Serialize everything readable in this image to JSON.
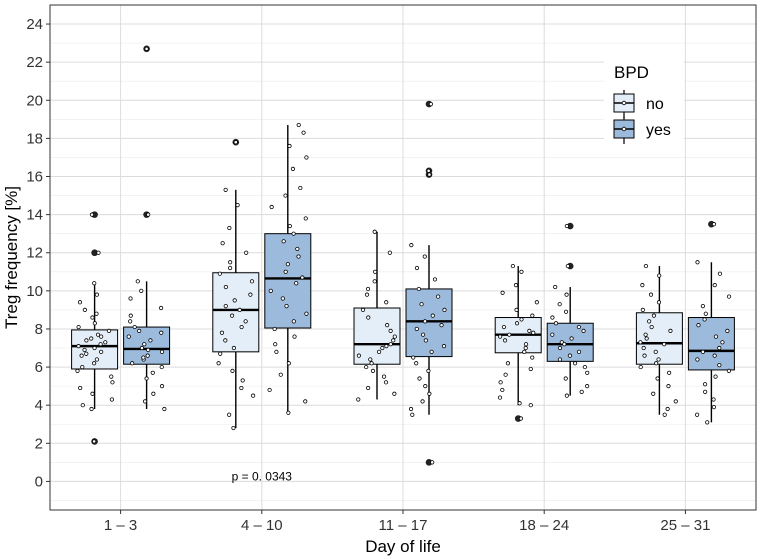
{
  "chart_data": {
    "type": "boxplot",
    "title": "",
    "xlabel": "Day of life",
    "ylabel": "Treg frequency [%]",
    "ylim": [
      -1.5,
      25
    ],
    "yticks": [
      0,
      2,
      4,
      6,
      8,
      10,
      12,
      14,
      16,
      18,
      20,
      22,
      24
    ],
    "categories": [
      "1 – 3",
      "4 – 10",
      "11 – 17",
      "18 – 24",
      "25 – 31"
    ],
    "legend": {
      "title": "BPD",
      "position": "top-right",
      "entries": [
        "no",
        "yes"
      ]
    },
    "colors": {
      "no": "#e3eef8",
      "yes": "#9cbadb"
    },
    "annotation": {
      "text": "p = 0. 0343",
      "category": "4 – 10",
      "y": 0.25
    },
    "series": [
      {
        "name": "no",
        "boxes": [
          {
            "category": "1 – 3",
            "min": 3.8,
            "q1": 5.9,
            "median": 7.1,
            "q3": 7.95,
            "max": 10.4,
            "outliers": [
              14.0,
              12.0,
              2.1
            ],
            "points": [
              10.4,
              9.8,
              9.4,
              9.0,
              8.6,
              8.3,
              8.1,
              7.9,
              7.7,
              7.5,
              7.4,
              7.3,
              7.2,
              7.1,
              7.0,
              6.9,
              6.8,
              6.6,
              6.4,
              6.2,
              6.0,
              5.8,
              5.5,
              5.2,
              4.9,
              4.6,
              4.3,
              4.0,
              3.8,
              8.8,
              7.6,
              6.7
            ]
          },
          {
            "category": "4 – 10",
            "min": 2.8,
            "q1": 6.8,
            "median": 9.0,
            "q3": 10.95,
            "max": 15.3,
            "outliers": [
              17.8
            ],
            "points": [
              15.3,
              14.5,
              13.3,
              12.5,
              12.0,
              11.5,
              11.2,
              10.9,
              10.5,
              10.2,
              9.8,
              9.5,
              9.2,
              9.0,
              8.7,
              8.4,
              8.1,
              7.8,
              7.4,
              7.0,
              6.7,
              6.2,
              5.8,
              5.3,
              4.9,
              4.5,
              3.5,
              2.8
            ]
          },
          {
            "category": "11 – 17",
            "min": 4.3,
            "q1": 6.15,
            "median": 7.2,
            "q3": 9.1,
            "max": 13.1,
            "outliers": [],
            "points": [
              13.1,
              12.0,
              11.0,
              10.5,
              10.1,
              9.8,
              9.4,
              9.0,
              8.6,
              8.2,
              7.9,
              7.6,
              7.4,
              7.2,
              7.1,
              7.0,
              6.8,
              6.6,
              6.4,
              6.2,
              6.0,
              5.8,
              5.5,
              5.2,
              4.9,
              4.6,
              4.3
            ]
          },
          {
            "category": "18 – 24",
            "min": 4.0,
            "q1": 6.75,
            "median": 7.7,
            "q3": 8.6,
            "max": 11.3,
            "outliers": [
              3.3
            ],
            "points": [
              11.3,
              11.0,
              10.3,
              9.9,
              9.4,
              9.0,
              8.7,
              8.5,
              8.3,
              8.1,
              7.9,
              7.8,
              7.7,
              7.6,
              7.4,
              7.2,
              7.0,
              6.8,
              6.5,
              6.2,
              5.9,
              5.6,
              5.2,
              4.8,
              4.4,
              4.1,
              4.0
            ]
          },
          {
            "category": "25 – 31",
            "min": 3.5,
            "q1": 6.15,
            "median": 7.25,
            "q3": 8.85,
            "max": 11.3,
            "outliers": [],
            "points": [
              11.3,
              10.8,
              10.3,
              9.8,
              9.4,
              9.0,
              8.7,
              8.4,
              8.1,
              7.9,
              7.7,
              7.5,
              7.3,
              7.2,
              7.0,
              6.8,
              6.6,
              6.4,
              6.2,
              6.0,
              5.7,
              5.4,
              5.0,
              4.6,
              4.2,
              3.8,
              3.5
            ]
          }
        ]
      },
      {
        "name": "yes",
        "boxes": [
          {
            "category": "1 – 3",
            "min": 3.8,
            "q1": 6.15,
            "median": 6.95,
            "q3": 8.1,
            "max": 10.5,
            "outliers": [
              22.7,
              14.0
            ],
            "points": [
              10.5,
              10.0,
              9.6,
              9.1,
              8.7,
              8.4,
              8.1,
              7.9,
              7.6,
              7.4,
              7.2,
              7.0,
              6.9,
              6.8,
              6.6,
              6.4,
              6.2,
              6.0,
              5.7,
              5.4,
              5.0,
              4.6,
              4.2,
              3.8,
              7.8,
              6.5
            ]
          },
          {
            "category": "4 – 10",
            "min": 3.6,
            "q1": 8.05,
            "median": 10.65,
            "q3": 13.0,
            "max": 18.7,
            "outliers": [],
            "points": [
              18.7,
              18.3,
              17.6,
              17.0,
              16.4,
              15.4,
              15.0,
              14.4,
              13.8,
              13.4,
              13.0,
              12.6,
              12.2,
              11.8,
              11.4,
              11.0,
              10.7,
              10.4,
              10.0,
              9.6,
              9.2,
              8.8,
              8.4,
              8.0,
              7.6,
              7.2,
              6.8,
              6.2,
              5.6,
              4.8,
              4.2,
              3.6
            ]
          },
          {
            "category": "11 – 17",
            "min": 3.5,
            "q1": 6.55,
            "median": 8.4,
            "q3": 10.1,
            "max": 12.4,
            "outliers": [
              19.8,
              16.3,
              16.1,
              1.0
            ],
            "points": [
              12.4,
              11.8,
              11.2,
              10.6,
              10.1,
              9.7,
              9.3,
              9.0,
              8.7,
              8.4,
              8.2,
              8.0,
              7.7,
              7.4,
              7.1,
              6.8,
              6.5,
              6.2,
              5.8,
              5.4,
              5.0,
              4.6,
              4.2,
              3.8,
              3.5
            ]
          },
          {
            "category": "18 – 24",
            "min": 4.5,
            "q1": 6.3,
            "median": 7.2,
            "q3": 8.3,
            "max": 10.2,
            "outliers": [
              13.4,
              11.3
            ],
            "points": [
              10.2,
              9.8,
              9.3,
              8.9,
              8.6,
              8.3,
              8.1,
              7.9,
              7.7,
              7.5,
              7.3,
              7.2,
              7.0,
              6.8,
              6.6,
              6.4,
              6.2,
              6.0,
              5.7,
              5.4,
              5.0,
              4.7,
              4.5
            ]
          },
          {
            "category": "25 – 31",
            "min": 3.1,
            "q1": 5.85,
            "median": 6.85,
            "q3": 8.6,
            "max": 11.5,
            "outliers": [
              13.5
            ],
            "points": [
              11.5,
              10.9,
              10.3,
              9.7,
              9.2,
              8.8,
              8.5,
              8.2,
              7.9,
              7.6,
              7.3,
              7.0,
              6.8,
              6.6,
              6.4,
              6.1,
              5.8,
              5.5,
              5.1,
              4.7,
              4.3,
              3.9,
              3.5,
              3.1
            ]
          }
        ]
      }
    ]
  }
}
